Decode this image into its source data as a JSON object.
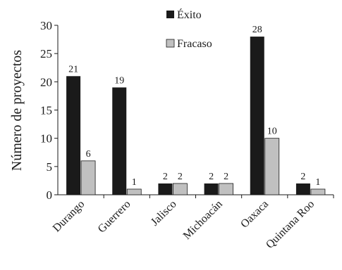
{
  "chart_data": {
    "type": "bar",
    "title": "",
    "xlabel": "",
    "ylabel": "Número de proyectos",
    "ylim": [
      0,
      30
    ],
    "yticks": [
      0,
      5,
      10,
      15,
      20,
      25,
      30
    ],
    "grid": false,
    "legend_position": "top-center",
    "categories": [
      "Durango",
      "Guerrero",
      "Jalisco",
      "Michoacán",
      "Oaxaca",
      "Quintana Roo"
    ],
    "series": [
      {
        "name": "Éxito",
        "color": "#1a1a1a",
        "values": [
          21,
          19,
          2,
          2,
          28,
          2
        ]
      },
      {
        "name": "Fracaso",
        "color": "#c0c0c0",
        "values": [
          6,
          1,
          2,
          2,
          10,
          1
        ]
      }
    ]
  }
}
